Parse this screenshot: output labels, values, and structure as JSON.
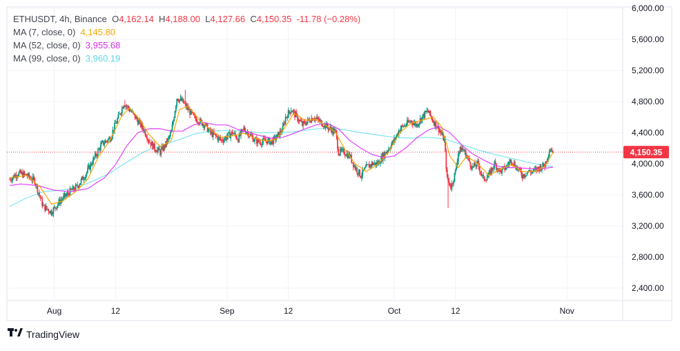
{
  "legend": {
    "symbol": "ETHUSDT, 4h, Binance",
    "open_label": "O",
    "open": "4,162.14",
    "high_label": "H",
    "high": "4,188.00",
    "low_label": "L",
    "low": "4,127.66",
    "close_label": "C",
    "close": "4,150.35",
    "change": "-11.78 (−0.28%)",
    "ma7_label": "MA (7, close, 0)",
    "ma7_value": "4,145.80",
    "ma52_label": "MA (52, close, 0)",
    "ma52_value": "3,955.68",
    "ma99_label": "MA (99, close, 0)",
    "ma99_value": "3,960.19"
  },
  "colors": {
    "up": "#089981",
    "down": "#f23645",
    "ma7": "#f7a600",
    "ma52": "#e040fb",
    "ma99": "#7fe3f0",
    "grid": "#f0f3fa",
    "axis_text": "#131722"
  },
  "last_price_label": "4,150.35",
  "brand": {
    "name": "TradingView",
    "logo_icon": "tradingview-logo-icon"
  },
  "chart_data": {
    "type": "candlestick",
    "ylim": [
      2200,
      6000
    ],
    "y_ticks": [
      "2,400.00",
      "2,800.00",
      "3,200.00",
      "3,600.00",
      "4,000.00",
      "4,400.00",
      "4,800.00",
      "5,200.00",
      "5,600.00",
      "6,000.00"
    ],
    "y_tick_values": [
      2400,
      2800,
      3200,
      3600,
      4000,
      4400,
      4800,
      5200,
      5600,
      6000
    ],
    "x_ticks": [
      "Aug",
      "12",
      "Sep",
      "12",
      "Oct",
      "12",
      "Nov"
    ],
    "x_tick_days": [
      31,
      42,
      62,
      73,
      92,
      103,
      123
    ],
    "x_range_days": [
      22.5,
      133
    ],
    "last_price": 4150.35,
    "anchors": [
      {
        "day": 23.0,
        "price": 3800
      },
      {
        "day": 24.5,
        "price": 3880
      },
      {
        "day": 26.0,
        "price": 3850
      },
      {
        "day": 27.5,
        "price": 3780
      },
      {
        "day": 29.0,
        "price": 3450
      },
      {
        "day": 30.5,
        "price": 3380
      },
      {
        "day": 32.0,
        "price": 3520
      },
      {
        "day": 34.0,
        "price": 3650
      },
      {
        "day": 35.0,
        "price": 3700
      },
      {
        "day": 36.5,
        "price": 3850
      },
      {
        "day": 38.0,
        "price": 4050
      },
      {
        "day": 39.5,
        "price": 4250
      },
      {
        "day": 41.0,
        "price": 4330
      },
      {
        "day": 42.5,
        "price": 4600
      },
      {
        "day": 43.5,
        "price": 4780
      },
      {
        "day": 44.5,
        "price": 4700
      },
      {
        "day": 45.5,
        "price": 4600
      },
      {
        "day": 47.0,
        "price": 4450
      },
      {
        "day": 48.0,
        "price": 4300
      },
      {
        "day": 49.0,
        "price": 4200
      },
      {
        "day": 50.0,
        "price": 4150
      },
      {
        "day": 51.0,
        "price": 4250
      },
      {
        "day": 52.0,
        "price": 4400
      },
      {
        "day": 53.0,
        "price": 4850
      },
      {
        "day": 54.0,
        "price": 4800
      },
      {
        "day": 55.0,
        "price": 4700
      },
      {
        "day": 56.0,
        "price": 4600
      },
      {
        "day": 57.0,
        "price": 4550
      },
      {
        "day": 58.0,
        "price": 4500
      },
      {
        "day": 59.0,
        "price": 4400
      },
      {
        "day": 60.0,
        "price": 4350
      },
      {
        "day": 61.0,
        "price": 4300
      },
      {
        "day": 62.0,
        "price": 4350
      },
      {
        "day": 63.0,
        "price": 4400
      },
      {
        "day": 64.0,
        "price": 4320
      },
      {
        "day": 65.0,
        "price": 4450
      },
      {
        "day": 66.0,
        "price": 4380
      },
      {
        "day": 67.0,
        "price": 4300
      },
      {
        "day": 68.0,
        "price": 4280
      },
      {
        "day": 69.0,
        "price": 4300
      },
      {
        "day": 70.0,
        "price": 4280
      },
      {
        "day": 71.0,
        "price": 4350
      },
      {
        "day": 72.0,
        "price": 4450
      },
      {
        "day": 72.5,
        "price": 4600
      },
      {
        "day": 73.5,
        "price": 4700
      },
      {
        "day": 74.5,
        "price": 4600
      },
      {
        "day": 75.5,
        "price": 4500
      },
      {
        "day": 76.5,
        "price": 4550
      },
      {
        "day": 77.5,
        "price": 4600
      },
      {
        "day": 78.5,
        "price": 4550
      },
      {
        "day": 79.5,
        "price": 4500
      },
      {
        "day": 80.5,
        "price": 4450
      },
      {
        "day": 81.5,
        "price": 4400
      },
      {
        "day": 82.0,
        "price": 4150
      },
      {
        "day": 83.0,
        "price": 4150
      },
      {
        "day": 84.0,
        "price": 4100
      },
      {
        "day": 85.0,
        "price": 3950
      },
      {
        "day": 86.0,
        "price": 3850
      },
      {
        "day": 87.0,
        "price": 3950
      },
      {
        "day": 88.0,
        "price": 4000
      },
      {
        "day": 89.0,
        "price": 4000
      },
      {
        "day": 90.0,
        "price": 4100
      },
      {
        "day": 91.0,
        "price": 4200
      },
      {
        "day": 92.0,
        "price": 4300
      },
      {
        "day": 93.0,
        "price": 4450
      },
      {
        "day": 94.0,
        "price": 4500
      },
      {
        "day": 95.0,
        "price": 4550
      },
      {
        "day": 96.0,
        "price": 4500
      },
      {
        "day": 97.0,
        "price": 4600
      },
      {
        "day": 98.0,
        "price": 4680
      },
      {
        "day": 99.0,
        "price": 4550
      },
      {
        "day": 100.0,
        "price": 4450
      },
      {
        "day": 101.0,
        "price": 4300
      },
      {
        "day": 101.5,
        "price": 3800
      },
      {
        "day": 102.2,
        "price": 3700
      },
      {
        "day": 103.0,
        "price": 3900
      },
      {
        "day": 103.5,
        "price": 4150
      },
      {
        "day": 104.2,
        "price": 4200
      },
      {
        "day": 105.0,
        "price": 4100
      },
      {
        "day": 106.0,
        "price": 3950
      },
      {
        "day": 107.0,
        "price": 4000
      },
      {
        "day": 108.0,
        "price": 3800
      },
      {
        "day": 109.0,
        "price": 3850
      },
      {
        "day": 110.0,
        "price": 4000
      },
      {
        "day": 111.0,
        "price": 3900
      },
      {
        "day": 112.0,
        "price": 3950
      },
      {
        "day": 113.0,
        "price": 4050
      },
      {
        "day": 114.0,
        "price": 3950
      },
      {
        "day": 115.0,
        "price": 3850
      },
      {
        "day": 116.0,
        "price": 3900
      },
      {
        "day": 117.0,
        "price": 3900
      },
      {
        "day": 118.0,
        "price": 3950
      },
      {
        "day": 119.0,
        "price": 3980
      },
      {
        "day": 119.5,
        "price": 4100
      },
      {
        "day": 120.0,
        "price": 4200
      },
      {
        "day": 120.5,
        "price": 4150
      }
    ],
    "spikes": [
      {
        "day": 101.6,
        "low": 3430
      },
      {
        "day": 54.5,
        "high": 4950
      },
      {
        "day": 43.6,
        "high": 4820
      }
    ],
    "ma7_points": [
      [
        23,
        3820
      ],
      [
        26,
        3850
      ],
      [
        28.5,
        3700
      ],
      [
        30.5,
        3480
      ],
      [
        32.5,
        3520
      ],
      [
        35,
        3650
      ],
      [
        37,
        3800
      ],
      [
        39,
        4100
      ],
      [
        41,
        4300
      ],
      [
        43,
        4600
      ],
      [
        44.5,
        4720
      ],
      [
        46,
        4600
      ],
      [
        48,
        4380
      ],
      [
        50,
        4220
      ],
      [
        52,
        4300
      ],
      [
        53.5,
        4700
      ],
      [
        55,
        4740
      ],
      [
        57,
        4570
      ],
      [
        59,
        4440
      ],
      [
        61,
        4340
      ],
      [
        63,
        4360
      ],
      [
        65,
        4390
      ],
      [
        67,
        4330
      ],
      [
        69,
        4290
      ],
      [
        71,
        4320
      ],
      [
        72.5,
        4480
      ],
      [
        74,
        4650
      ],
      [
        76,
        4560
      ],
      [
        78,
        4570
      ],
      [
        80,
        4480
      ],
      [
        81.5,
        4400
      ],
      [
        83,
        4200
      ],
      [
        85,
        4000
      ],
      [
        87,
        3900
      ],
      [
        89,
        3990
      ],
      [
        91,
        4150
      ],
      [
        93,
        4400
      ],
      [
        95,
        4520
      ],
      [
        97,
        4560
      ],
      [
        99,
        4600
      ],
      [
        100.5,
        4480
      ],
      [
        102,
        4100
      ],
      [
        103.5,
        3950
      ],
      [
        105,
        4100
      ],
      [
        107,
        4000
      ],
      [
        109,
        3850
      ],
      [
        111,
        3930
      ],
      [
        113,
        3990
      ],
      [
        115,
        3900
      ],
      [
        117,
        3900
      ],
      [
        119,
        3960
      ],
      [
        120.5,
        4146
      ]
    ],
    "ma52_points": [
      [
        23,
        3720
      ],
      [
        25,
        3740
      ],
      [
        28,
        3720
      ],
      [
        31,
        3660
      ],
      [
        34,
        3640
      ],
      [
        37,
        3680
      ],
      [
        40,
        3820
      ],
      [
        42,
        3990
      ],
      [
        44,
        4230
      ],
      [
        46,
        4400
      ],
      [
        48,
        4450
      ],
      [
        50,
        4450
      ],
      [
        52,
        4420
      ],
      [
        54,
        4420
      ],
      [
        56,
        4500
      ],
      [
        58,
        4530
      ],
      [
        60,
        4500
      ],
      [
        62,
        4500
      ],
      [
        64,
        4440
      ],
      [
        66,
        4400
      ],
      [
        68,
        4360
      ],
      [
        70,
        4330
      ],
      [
        72,
        4340
      ],
      [
        74,
        4390
      ],
      [
        76,
        4450
      ],
      [
        78,
        4500
      ],
      [
        80,
        4520
      ],
      [
        82,
        4450
      ],
      [
        84,
        4300
      ],
      [
        86,
        4200
      ],
      [
        88,
        4120
      ],
      [
        90,
        4080
      ],
      [
        92,
        4100
      ],
      [
        94,
        4200
      ],
      [
        96,
        4330
      ],
      [
        98,
        4430
      ],
      [
        100,
        4480
      ],
      [
        102,
        4400
      ],
      [
        104,
        4250
      ],
      [
        106,
        4130
      ],
      [
        108,
        4050
      ],
      [
        110,
        3980
      ],
      [
        112,
        3950
      ],
      [
        114,
        3950
      ],
      [
        116,
        3940
      ],
      [
        118,
        3930
      ],
      [
        120.5,
        3956
      ]
    ],
    "ma99_points": [
      [
        23,
        3450
      ],
      [
        26,
        3560
      ],
      [
        29,
        3640
      ],
      [
        32,
        3660
      ],
      [
        35,
        3690
      ],
      [
        38,
        3780
      ],
      [
        41,
        3880
      ],
      [
        44,
        4020
      ],
      [
        47,
        4150
      ],
      [
        50,
        4230
      ],
      [
        53,
        4300
      ],
      [
        56,
        4380
      ],
      [
        59,
        4420
      ],
      [
        62,
        4430
      ],
      [
        65,
        4420
      ],
      [
        68,
        4400
      ],
      [
        71,
        4400
      ],
      [
        74,
        4410
      ],
      [
        77,
        4440
      ],
      [
        80,
        4460
      ],
      [
        83,
        4440
      ],
      [
        86,
        4400
      ],
      [
        89,
        4370
      ],
      [
        92,
        4340
      ],
      [
        95,
        4330
      ],
      [
        98,
        4340
      ],
      [
        101,
        4320
      ],
      [
        104,
        4250
      ],
      [
        107,
        4180
      ],
      [
        110,
        4120
      ],
      [
        113,
        4070
      ],
      [
        116,
        4020
      ],
      [
        118,
        3990
      ],
      [
        120.5,
        3960
      ]
    ]
  }
}
